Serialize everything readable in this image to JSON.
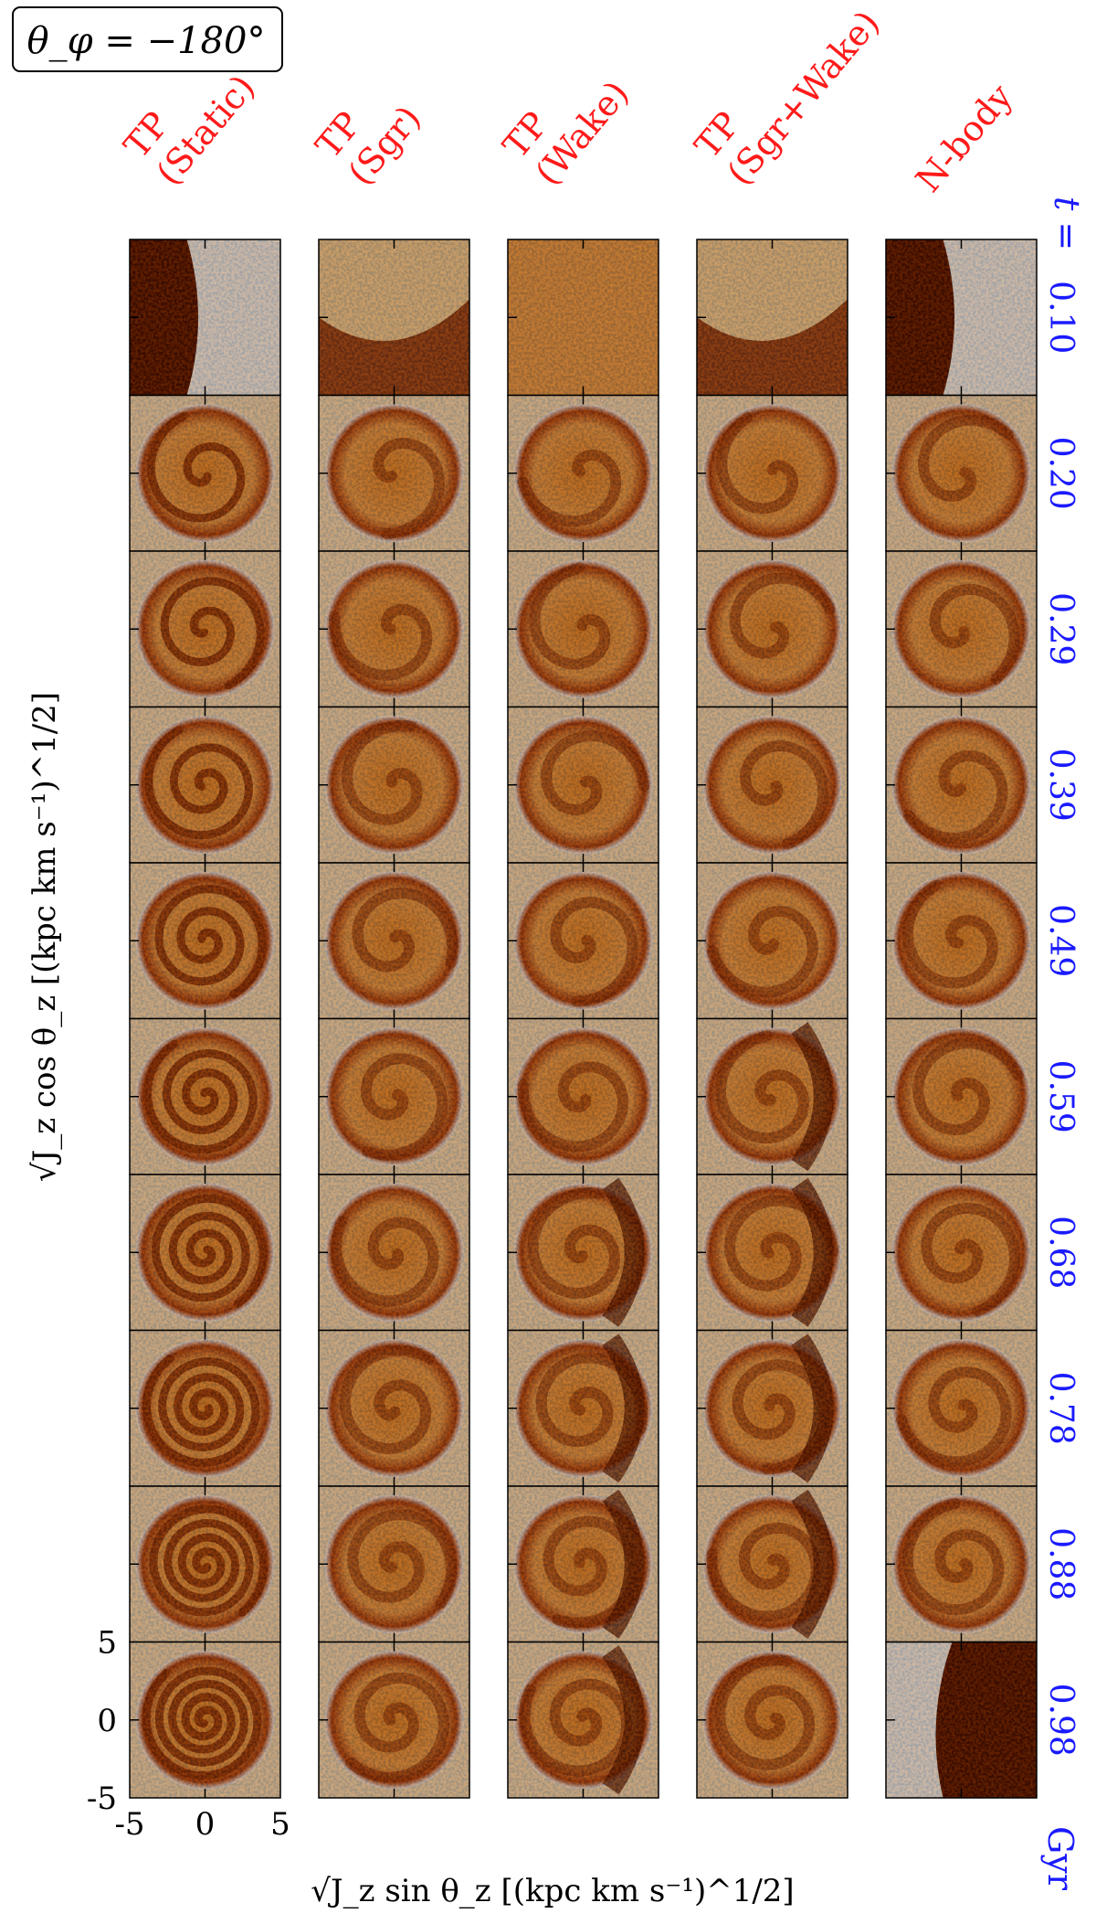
{
  "chart_data": {
    "type": "heatmap",
    "title_box": "θ_φ = −180°",
    "column_titles": [
      [
        "TP",
        "(Static)"
      ],
      [
        "TP",
        "(Sgr)"
      ],
      [
        "TP",
        "(Wake)"
      ],
      [
        "TP",
        "(Sgr+Wake)"
      ],
      [
        "N-body"
      ]
    ],
    "time_label": "t =",
    "time_unit": "Gyr",
    "times": [
      "0.10",
      "0.20",
      "0.29",
      "0.39",
      "0.49",
      "0.59",
      "0.68",
      "0.78",
      "0.88",
      "0.98"
    ],
    "xlabel": "√J_z sin θ_z [(kpc km s⁻¹)^1/2]",
    "ylabel": "√J_z cos θ_z [(kpc km s⁻¹)^1/2]",
    "xlim": [
      -5,
      5
    ],
    "ylim": [
      -5,
      5
    ],
    "x_ticks": [
      "-5",
      "0",
      "5"
    ],
    "y_ticks": [
      "5",
      "0",
      "-5"
    ],
    "colormap": "afmhot_r",
    "colors": {
      "title_red": "#ff1a1a",
      "time_blue": "#1a1aff",
      "dark": "#5a1500",
      "mid": "#e0701a",
      "light": "#ffffff"
    }
  }
}
